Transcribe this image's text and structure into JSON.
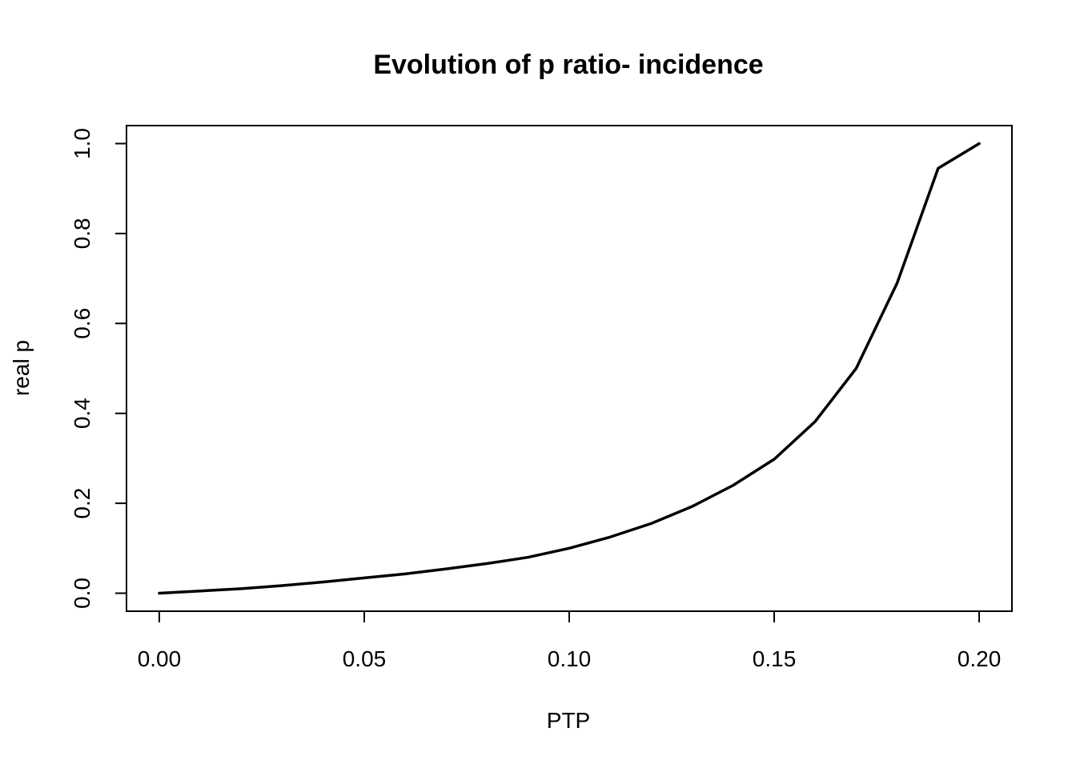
{
  "chart_data": {
    "type": "line",
    "title": "Evolution of p ratio- incidence",
    "xlabel": "PTP",
    "ylabel": "real p",
    "xlim": [
      -0.008,
      0.208
    ],
    "ylim": [
      -0.04,
      1.04
    ],
    "x_ticks": [
      0.0,
      0.05,
      0.1,
      0.15,
      0.2
    ],
    "x_tick_labels": [
      "0.00",
      "0.05",
      "0.10",
      "0.15",
      "0.20"
    ],
    "y_ticks": [
      0.0,
      0.2,
      0.4,
      0.6,
      0.8,
      1.0
    ],
    "y_tick_labels": [
      "0.0",
      "0.2",
      "0.4",
      "0.6",
      "0.8",
      "1.0"
    ],
    "grid": false,
    "line_color": "#000000",
    "x": [
      0.0,
      0.01,
      0.02,
      0.03,
      0.04,
      0.05,
      0.06,
      0.07,
      0.08,
      0.09,
      0.1,
      0.11,
      0.12,
      0.13,
      0.14,
      0.15,
      0.16,
      0.17,
      0.18,
      0.19,
      0.2
    ],
    "y": [
      0.0,
      0.005,
      0.01,
      0.017,
      0.025,
      0.034,
      0.043,
      0.054,
      0.066,
      0.08,
      0.1,
      0.125,
      0.155,
      0.193,
      0.24,
      0.298,
      0.382,
      0.5,
      0.69,
      0.945,
      1.0
    ]
  }
}
